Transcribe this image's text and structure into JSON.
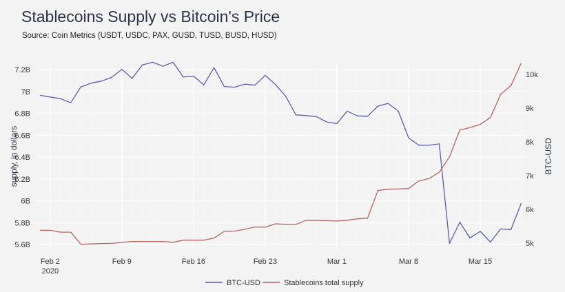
{
  "chart_data": {
    "type": "line",
    "title": "Stablecoins Supply vs Bitcoin's Price",
    "subtitle": "Source: Coin Metrics (USDT, USDC, PAX, GUSD, TUSD, BUSD, HUSD)",
    "ylabel": "supply, in dollars",
    "y2label": "BTC-USD",
    "x_start": "2020-02-01",
    "x_end": "2020-03-18",
    "x_ticks": [
      "Feb 2",
      "Feb 9",
      "Feb 16",
      "Feb 23",
      "Mar 1",
      "Mar 8",
      "Mar 15"
    ],
    "x_tick_year": "2020",
    "y_ticks": [
      "5.6B",
      "5.8B",
      "6B",
      "6.2B",
      "6.4B",
      "6.6B",
      "6.8B",
      "7B",
      "7.2B"
    ],
    "y_tick_values": [
      5.6,
      5.8,
      6.0,
      6.2,
      6.4,
      6.6,
      6.8,
      7.0,
      7.2
    ],
    "y2_ticks": [
      "5k",
      "6k",
      "7k",
      "8k",
      "9k",
      "10k"
    ],
    "y2_tick_values": [
      5000,
      6000,
      7000,
      8000,
      9000,
      10000
    ],
    "grid": true,
    "legend_position": "bottom",
    "series": [
      {
        "name": "BTC-USD",
        "axis": "right",
        "color": "#5a5aa8",
        "values": [
          9380,
          9330,
          9280,
          9160,
          9630,
          9740,
          9800,
          9910,
          10150,
          9880,
          10280,
          10360,
          10240,
          10360,
          9920,
          9950,
          9690,
          10200,
          9640,
          9620,
          9710,
          9680,
          9970,
          9700,
          9350,
          8800,
          8780,
          8750,
          8590,
          8540,
          8910,
          8770,
          8760,
          9060,
          9140,
          8910,
          8120,
          7900,
          7900,
          7940,
          4990,
          5620,
          5150,
          5350,
          5030,
          5420,
          5400,
          6180
        ]
      },
      {
        "name": "Stablecoins total supply",
        "axis": "left",
        "unit": "billion USD",
        "color": "#b5615f",
        "values": [
          5.73,
          5.73,
          5.713,
          5.713,
          5.602,
          5.605,
          5.608,
          5.61,
          5.619,
          5.627,
          5.628,
          5.628,
          5.628,
          5.62,
          5.64,
          5.64,
          5.64,
          5.659,
          5.72,
          5.722,
          5.739,
          5.76,
          5.758,
          5.789,
          5.785,
          5.783,
          5.822,
          5.82,
          5.818,
          5.814,
          5.822,
          5.835,
          5.84,
          6.093,
          6.106,
          6.108,
          6.112,
          6.18,
          6.203,
          6.261,
          6.402,
          6.646,
          6.669,
          6.698,
          6.761,
          6.975,
          7.053,
          7.259
        ]
      }
    ]
  }
}
